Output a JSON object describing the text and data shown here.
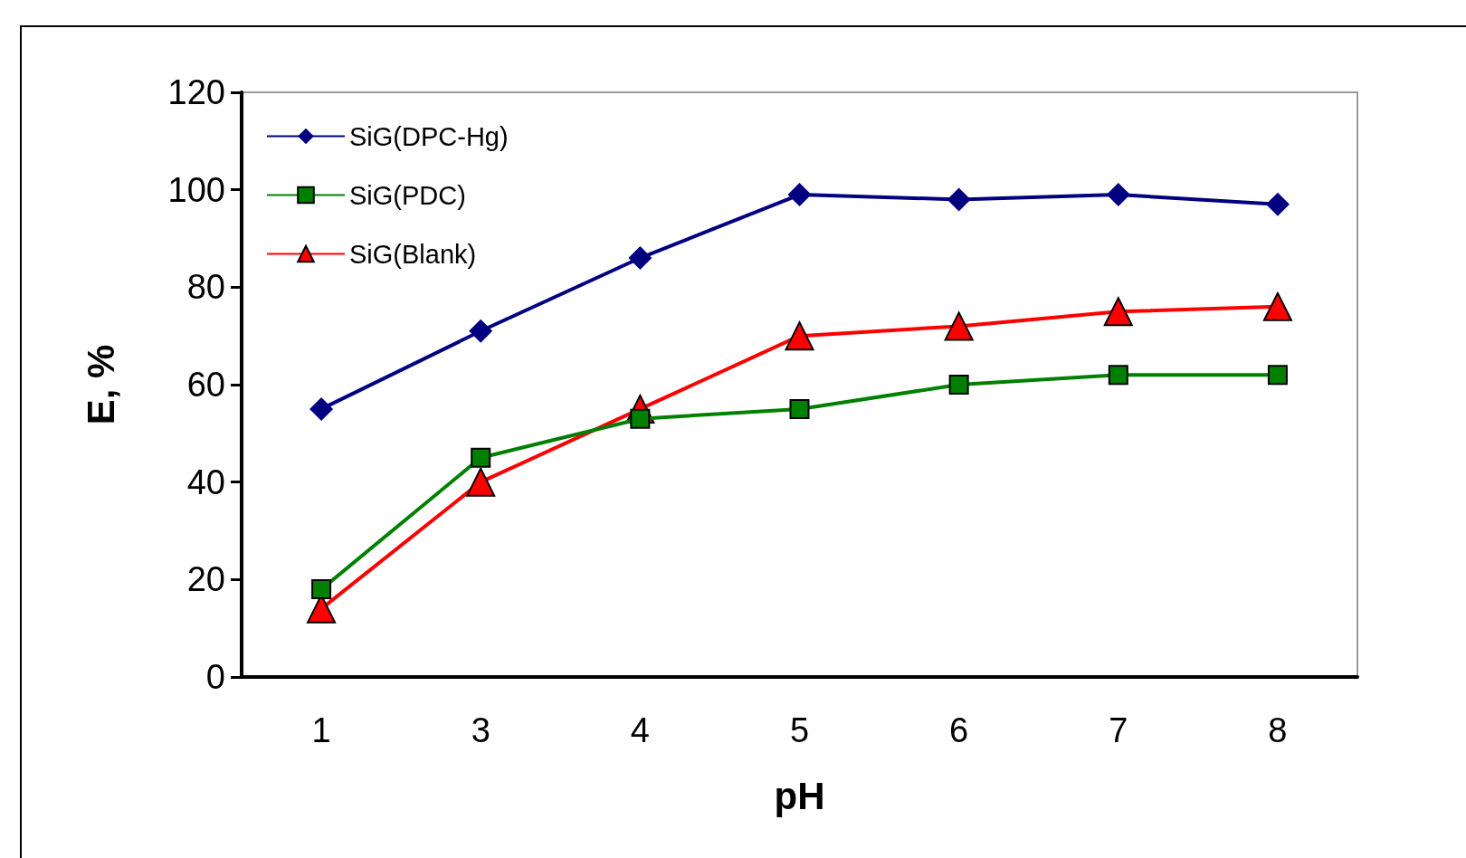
{
  "chart_data": {
    "type": "line",
    "xlabel": "pH",
    "ylabel": "E, %",
    "categories": [
      "1",
      "3",
      "4",
      "5",
      "6",
      "7",
      "8"
    ],
    "series": [
      {
        "name": "SiG(DPC-Hg)",
        "color": "#000080",
        "marker": "diamond",
        "values": [
          55,
          71,
          86,
          99,
          98,
          99,
          97
        ]
      },
      {
        "name": "SiG(PDC)",
        "color": "#008000",
        "marker": "square",
        "values": [
          18,
          45,
          53,
          55,
          60,
          62,
          62
        ]
      },
      {
        "name": "SiG(Blank)",
        "color": "#ff0000",
        "marker": "triangle",
        "values": [
          14,
          40,
          55,
          70,
          72,
          75,
          76
        ]
      }
    ],
    "ylim": [
      0,
      120
    ],
    "yticks": [
      0,
      20,
      40,
      60,
      80,
      100,
      120
    ],
    "grid": false,
    "legend": "top left",
    "line_style": "solid"
  }
}
